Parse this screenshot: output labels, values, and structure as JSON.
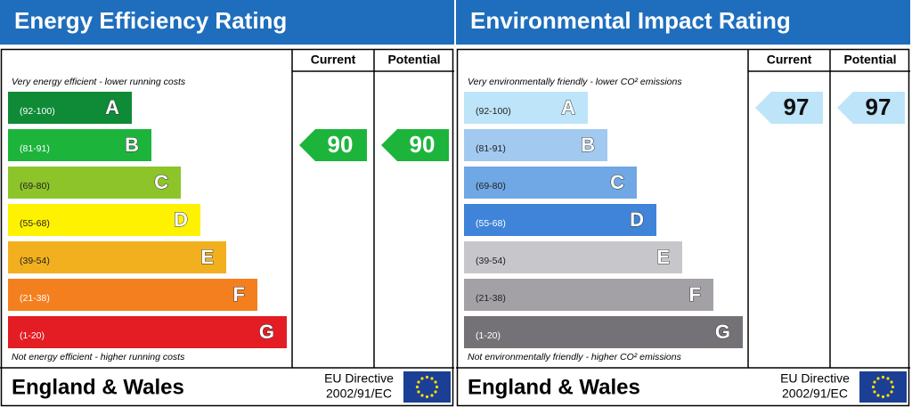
{
  "panels": [
    {
      "title": "Energy Efficiency Rating",
      "columns": [
        "Current",
        "Potential"
      ],
      "top_note": "Very energy efficient - lower running costs",
      "bottom_note": "Not energy efficient - higher running costs",
      "bands": [
        {
          "range": "(92-100)",
          "letter": "A",
          "color": "#0f8a36"
        },
        {
          "range": "(81-91)",
          "letter": "B",
          "color": "#1db43c"
        },
        {
          "range": "(69-80)",
          "letter": "C",
          "color": "#8dc42a"
        },
        {
          "range": "(55-68)",
          "letter": "D",
          "color": "#fff200"
        },
        {
          "range": "(39-54)",
          "letter": "E",
          "color": "#f2b01e"
        },
        {
          "range": "(21-38)",
          "letter": "F",
          "color": "#f47f1f"
        },
        {
          "range": "(1-20)",
          "letter": "G",
          "color": "#e31d23"
        }
      ],
      "current": 90,
      "potential": 90,
      "footer": "England & Wales",
      "directive": [
        "EU Directive",
        "2002/91/EC"
      ]
    },
    {
      "title": "Environmental Impact Rating",
      "columns": [
        "Current",
        "Potential"
      ],
      "top_note": "Very environmentally friendly - lower CO² emissions",
      "bottom_note": "Not environmentally friendly - higher CO² emissions",
      "bands": [
        {
          "range": "(92-100)",
          "letter": "A",
          "color": "#bde4f8"
        },
        {
          "range": "(81-91)",
          "letter": "B",
          "color": "#a2c9ef"
        },
        {
          "range": "(69-80)",
          "letter": "C",
          "color": "#6fa8e4"
        },
        {
          "range": "(55-68)",
          "letter": "D",
          "color": "#3f84d9"
        },
        {
          "range": "(39-54)",
          "letter": "E",
          "color": "#c7c7cb"
        },
        {
          "range": "(21-38)",
          "letter": "F",
          "color": "#a3a1a6"
        },
        {
          "range": "(1-20)",
          "letter": "G",
          "color": "#747276"
        }
      ],
      "current": 97,
      "potential": 97,
      "footer": "England & Wales",
      "directive": [
        "EU Directive",
        "2002/91/EC"
      ]
    }
  ]
}
